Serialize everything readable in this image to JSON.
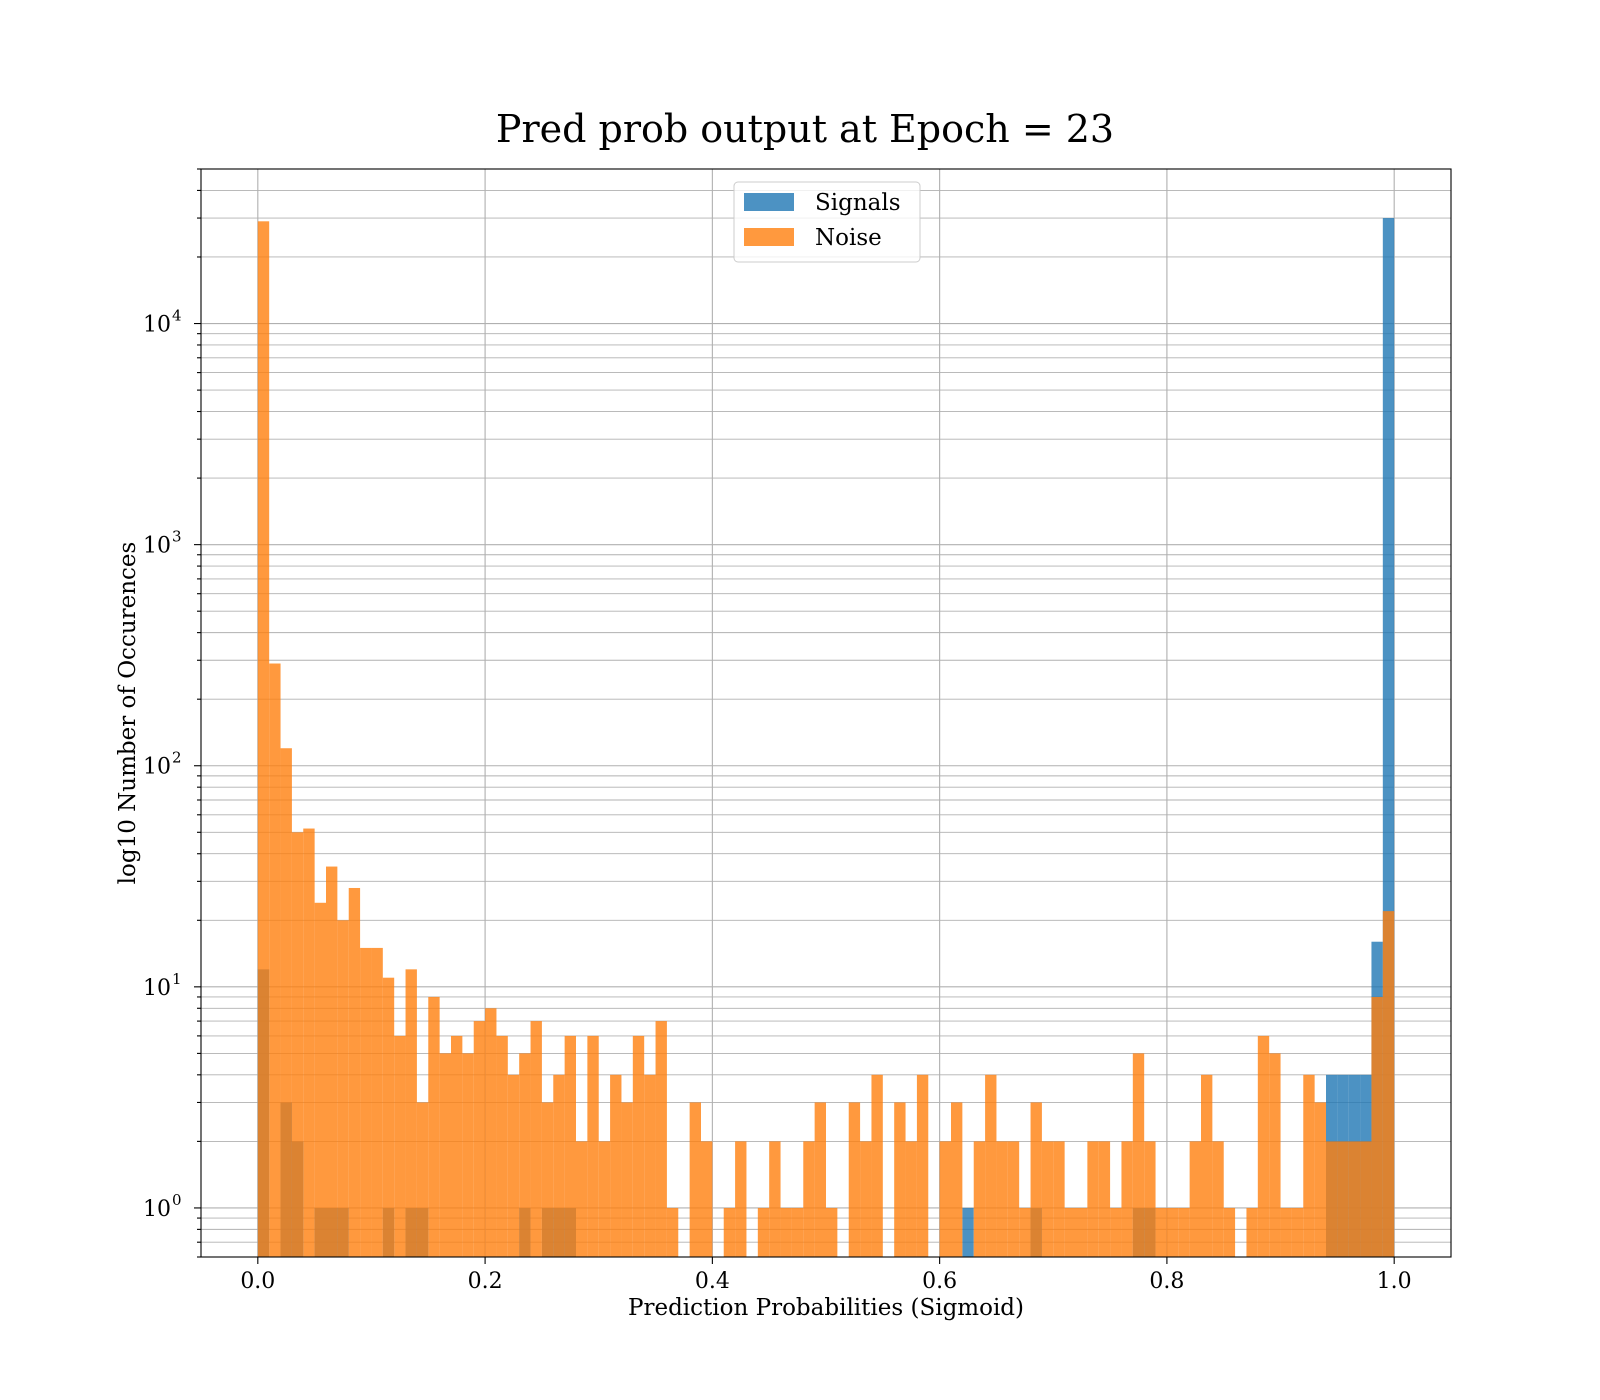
{
  "chart_data": {
    "type": "bar",
    "title": "Pred prob output at Epoch = 23",
    "xlabel": "Prediction Probabilities (Sigmoid)",
    "ylabel": "log10 Number of Occurences",
    "x_ticks": [
      "0.0",
      "0.2",
      "0.4",
      "0.6",
      "0.8",
      "1.0"
    ],
    "x_tick_values": [
      0,
      0.2,
      0.4,
      0.6,
      0.8,
      1.0
    ],
    "y_ticks": [
      {
        "base": "10",
        "exp": "0",
        "value": 1
      },
      {
        "base": "10",
        "exp": "1",
        "value": 10
      },
      {
        "base": "10",
        "exp": "2",
        "value": 100
      },
      {
        "base": "10",
        "exp": "3",
        "value": 1000
      },
      {
        "base": "10",
        "exp": "4",
        "value": 10000
      }
    ],
    "xlim": [
      -0.05,
      1.05
    ],
    "ylim": [
      0.6,
      50000
    ],
    "yscale": "log",
    "grid": true,
    "bins": 100,
    "bin_range": [
      0,
      1
    ],
    "legend": {
      "placement": "upper-center",
      "entries": [
        {
          "label": "Signals",
          "color": "#1f77b4"
        },
        {
          "label": "Noise",
          "color": "#ff7f0e"
        }
      ]
    },
    "series": [
      {
        "name": "Signals",
        "color": "#1f77b4",
        "values": [
          12,
          0,
          3,
          2,
          0,
          1,
          1,
          1,
          0,
          0,
          0,
          1,
          0,
          1,
          1,
          0,
          0,
          0,
          0,
          0,
          0,
          0,
          0,
          1,
          0,
          1,
          1,
          1,
          0,
          0,
          0,
          0,
          0,
          0,
          0,
          0,
          0,
          0,
          0,
          0,
          0,
          0,
          0,
          0,
          0,
          0,
          0,
          0,
          0,
          0,
          0,
          0,
          0,
          0,
          0,
          0,
          0,
          0,
          0,
          0,
          0,
          0,
          1,
          0,
          0,
          0,
          0,
          0,
          1,
          0,
          0,
          0,
          0,
          0,
          0,
          0,
          0,
          1,
          1,
          0,
          0,
          0,
          0,
          0,
          0,
          0,
          0,
          0,
          0,
          0,
          0,
          0,
          0,
          0,
          4,
          4,
          4,
          4,
          16,
          30000
        ]
      },
      {
        "name": "Noise",
        "color": "#ff7f0e",
        "values": [
          29000,
          290,
          120,
          50,
          52,
          24,
          35,
          20,
          28,
          15,
          15,
          11,
          6,
          12,
          3,
          9,
          5,
          6,
          5,
          7,
          8,
          6,
          4,
          5,
          7,
          3,
          4,
          6,
          2,
          6,
          2,
          4,
          3,
          6,
          4,
          7,
          1,
          0,
          3,
          2,
          0,
          1,
          2,
          0,
          1,
          2,
          1,
          1,
          2,
          3,
          1,
          0,
          3,
          2,
          4,
          0,
          3,
          2,
          4,
          0,
          2,
          3,
          0,
          2,
          4,
          2,
          2,
          1,
          3,
          2,
          2,
          1,
          1,
          2,
          2,
          1,
          2,
          5,
          2,
          1,
          1,
          1,
          2,
          4,
          2,
          1,
          0,
          1,
          6,
          5,
          1,
          1,
          4,
          3,
          2,
          2,
          2,
          2,
          9,
          22
        ]
      }
    ]
  }
}
